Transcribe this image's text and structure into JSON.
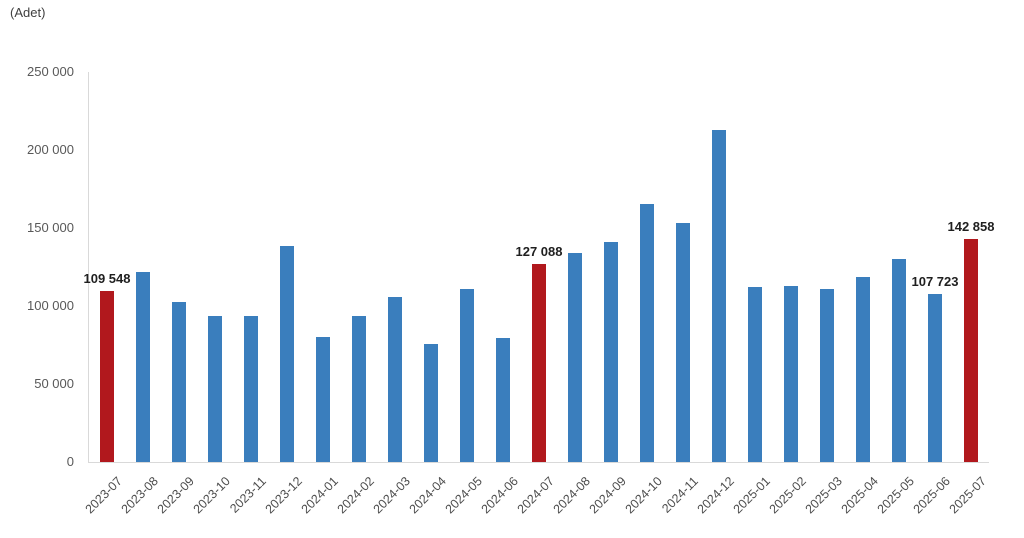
{
  "header": {
    "unit_label": "(Adet)"
  },
  "colors": {
    "bar": "#3a7ebd",
    "highlight": "#b1181d",
    "axis_line": "#d9d9d9",
    "tick_text": "#595959",
    "data_label_text": "#1f1f1f"
  },
  "chart_data": {
    "type": "bar",
    "title": "",
    "ylabel": "(Adet)",
    "xlabel": "",
    "ylim": [
      0,
      250000
    ],
    "grid": false,
    "legend": "none",
    "categories": [
      "2023-07",
      "2023-08",
      "2023-09",
      "2023-10",
      "2023-11",
      "2023-12",
      "2024-01",
      "2024-02",
      "2024-03",
      "2024-04",
      "2024-05",
      "2024-06",
      "2024-07",
      "2024-08",
      "2024-09",
      "2024-10",
      "2024-11",
      "2024-12",
      "2025-01",
      "2025-02",
      "2025-03",
      "2025-04",
      "2025-05",
      "2025-06",
      "2025-07"
    ],
    "values": [
      109548,
      122100,
      102700,
      93800,
      93500,
      138600,
      80300,
      93900,
      105500,
      75600,
      110600,
      79300,
      127088,
      134200,
      140900,
      165100,
      153000,
      212600,
      112200,
      112800,
      110800,
      118400,
      130000,
      107723,
      142858
    ],
    "highlight_indices": [
      0,
      12,
      24
    ],
    "bar_labels": {
      "0": "109 548",
      "12": "127 088",
      "23": "107 723",
      "24": "142 858"
    },
    "yticks": [
      {
        "value": 0,
        "label": "0"
      },
      {
        "value": 50000,
        "label": "50 000"
      },
      {
        "value": 100000,
        "label": "100 000"
      },
      {
        "value": 150000,
        "label": "150 000"
      },
      {
        "value": 200000,
        "label": "200 000"
      },
      {
        "value": 250000,
        "label": "250 000"
      }
    ]
  }
}
